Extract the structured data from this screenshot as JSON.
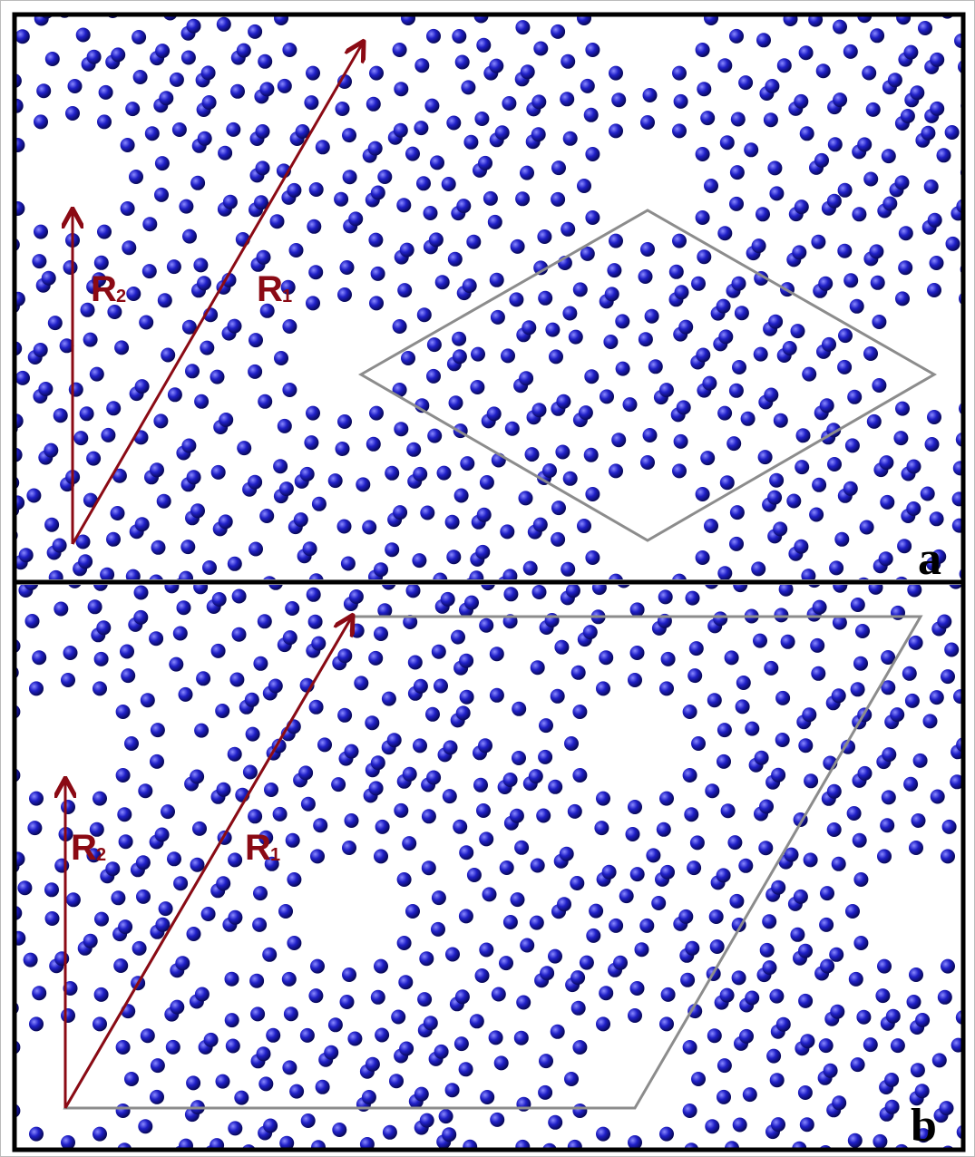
{
  "panels": [
    {
      "label": "a",
      "r1": {
        "letter": "R",
        "sub": "1"
      },
      "r2": {
        "letter": "R",
        "sub": "2"
      }
    },
    {
      "label": "b",
      "r1": {
        "letter": "R",
        "sub": "1"
      },
      "r2": {
        "letter": "R",
        "sub": "2"
      }
    }
  ]
}
